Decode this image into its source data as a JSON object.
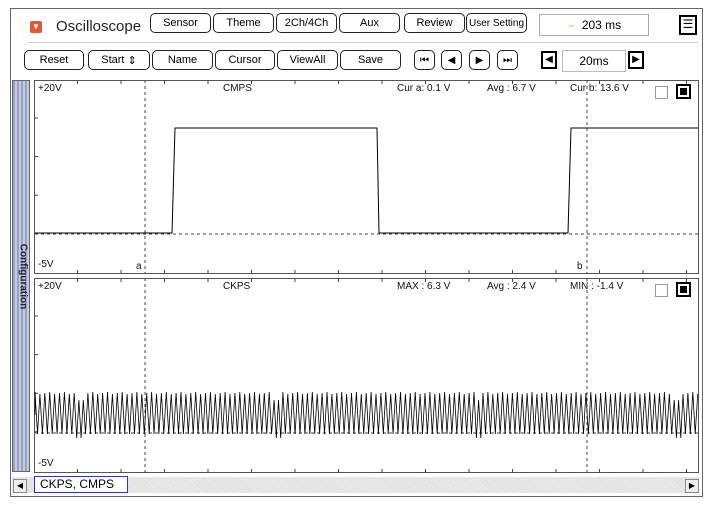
{
  "app": {
    "title": "Oscilloscope",
    "menu_icon": "dropdown-icon"
  },
  "top_buttons": [
    "Sensor",
    "Theme",
    "2Ch/4Ch",
    "Aux",
    "Review",
    "User Setting"
  ],
  "time_readout": "203 ms",
  "toolbar": {
    "reset": "Reset",
    "start": "Start",
    "name": "Name",
    "cursor": "Cursor",
    "viewall": "ViewAll",
    "save": "Save",
    "timebase": "20ms"
  },
  "sidebar_label": "Configuration",
  "channels": [
    {
      "name": "CMPS",
      "top": "+20V",
      "bottom": "-5V",
      "stats": [
        "Cur a: 0.1 V",
        "Avg : 6.7 V",
        "Cur b: 13.6 V"
      ]
    },
    {
      "name": "CKPS",
      "top": "+20V",
      "bottom": "-5V",
      "stats": [
        "MAX : 6.3 V",
        "Avg : 2.4 V",
        "MIN : -1.4 V"
      ]
    }
  ],
  "cursors": {
    "a": "a",
    "b": "b"
  },
  "selected_channels": "CKPS, CMPS",
  "colors": {
    "accent": "#e05a3a",
    "chip_border": "#2233ee"
  }
}
